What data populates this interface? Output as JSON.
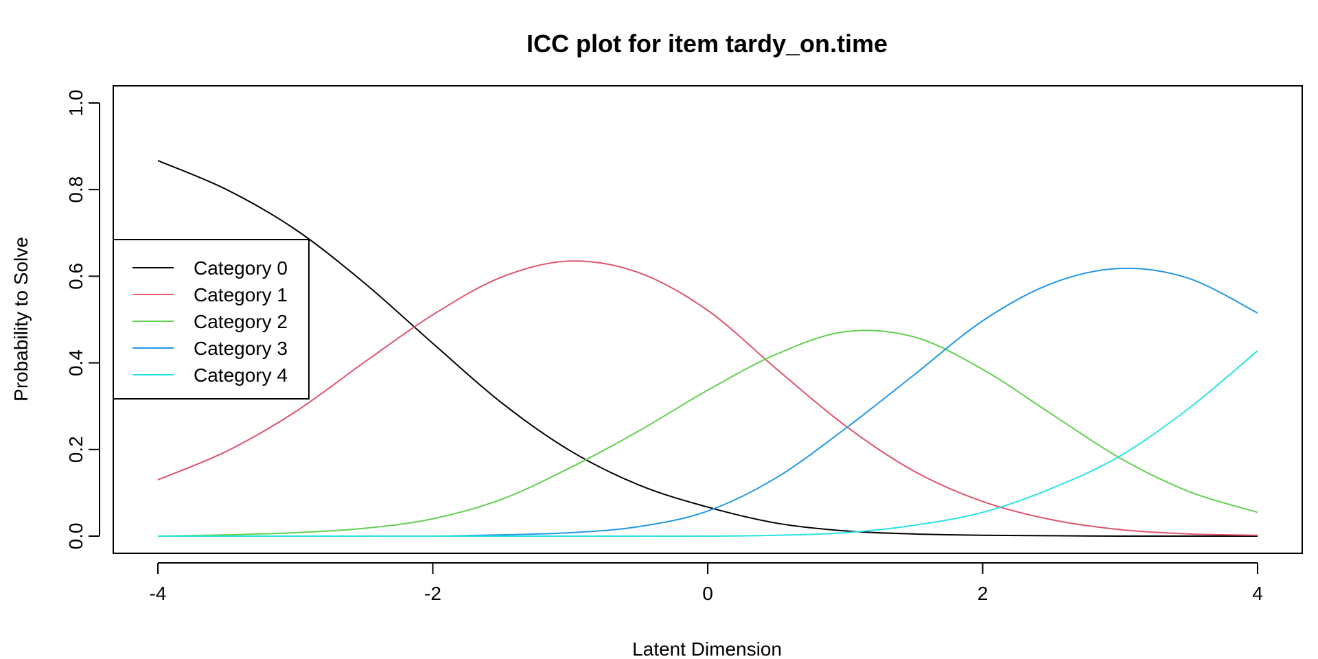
{
  "chart_data": {
    "type": "line",
    "title": "ICC plot for item tardy_on.time",
    "xlabel": "Latent Dimension",
    "ylabel": "Probability to Solve",
    "xlim": [
      -4,
      4
    ],
    "ylim": [
      0,
      1
    ],
    "x_ticks": [
      "-4",
      "-2",
      "0",
      "2",
      "4"
    ],
    "y_ticks": [
      "0.0",
      "0.2",
      "0.4",
      "0.6",
      "0.8",
      "1.0"
    ],
    "legend_position": "left",
    "x": [
      -4,
      -3.5,
      -3,
      -2.5,
      -2,
      -1.5,
      -1,
      -0.5,
      0,
      0.5,
      1,
      1.5,
      2,
      2.5,
      3,
      3.5,
      4
    ],
    "series": [
      {
        "name": "Category 0",
        "color": "#000000",
        "values": [
          0.867,
          0.8,
          0.708,
          0.585,
          0.445,
          0.308,
          0.197,
          0.118,
          0.067,
          0.03,
          0.012,
          0.005,
          0.002,
          0.001,
          0.0,
          0.0,
          0.0
        ]
      },
      {
        "name": "Category 1",
        "color": "#DF536B",
        "values": [
          0.13,
          0.196,
          0.287,
          0.401,
          0.511,
          0.598,
          0.635,
          0.608,
          0.521,
          0.386,
          0.255,
          0.15,
          0.08,
          0.038,
          0.015,
          0.005,
          0.002
        ]
      },
      {
        "name": "Category 2",
        "color": "#61D04F",
        "values": [
          0.0,
          0.003,
          0.008,
          0.018,
          0.04,
          0.085,
          0.158,
          0.243,
          0.337,
          0.42,
          0.472,
          0.46,
          0.385,
          0.282,
          0.18,
          0.103,
          0.055
        ]
      },
      {
        "name": "Category 3",
        "color": "#2297E6",
        "values": [
          0.0,
          0.0,
          0.0,
          0.0,
          0.0,
          0.003,
          0.008,
          0.022,
          0.058,
          0.135,
          0.248,
          0.372,
          0.497,
          0.583,
          0.618,
          0.595,
          0.515
        ]
      },
      {
        "name": "Category 4",
        "color": "#28E2E5",
        "values": [
          0.0,
          0.0,
          0.0,
          0.0,
          0.0,
          0.0,
          0.0,
          0.0,
          0.0,
          0.002,
          0.008,
          0.025,
          0.055,
          0.11,
          0.185,
          0.295,
          0.428
        ]
      }
    ]
  }
}
